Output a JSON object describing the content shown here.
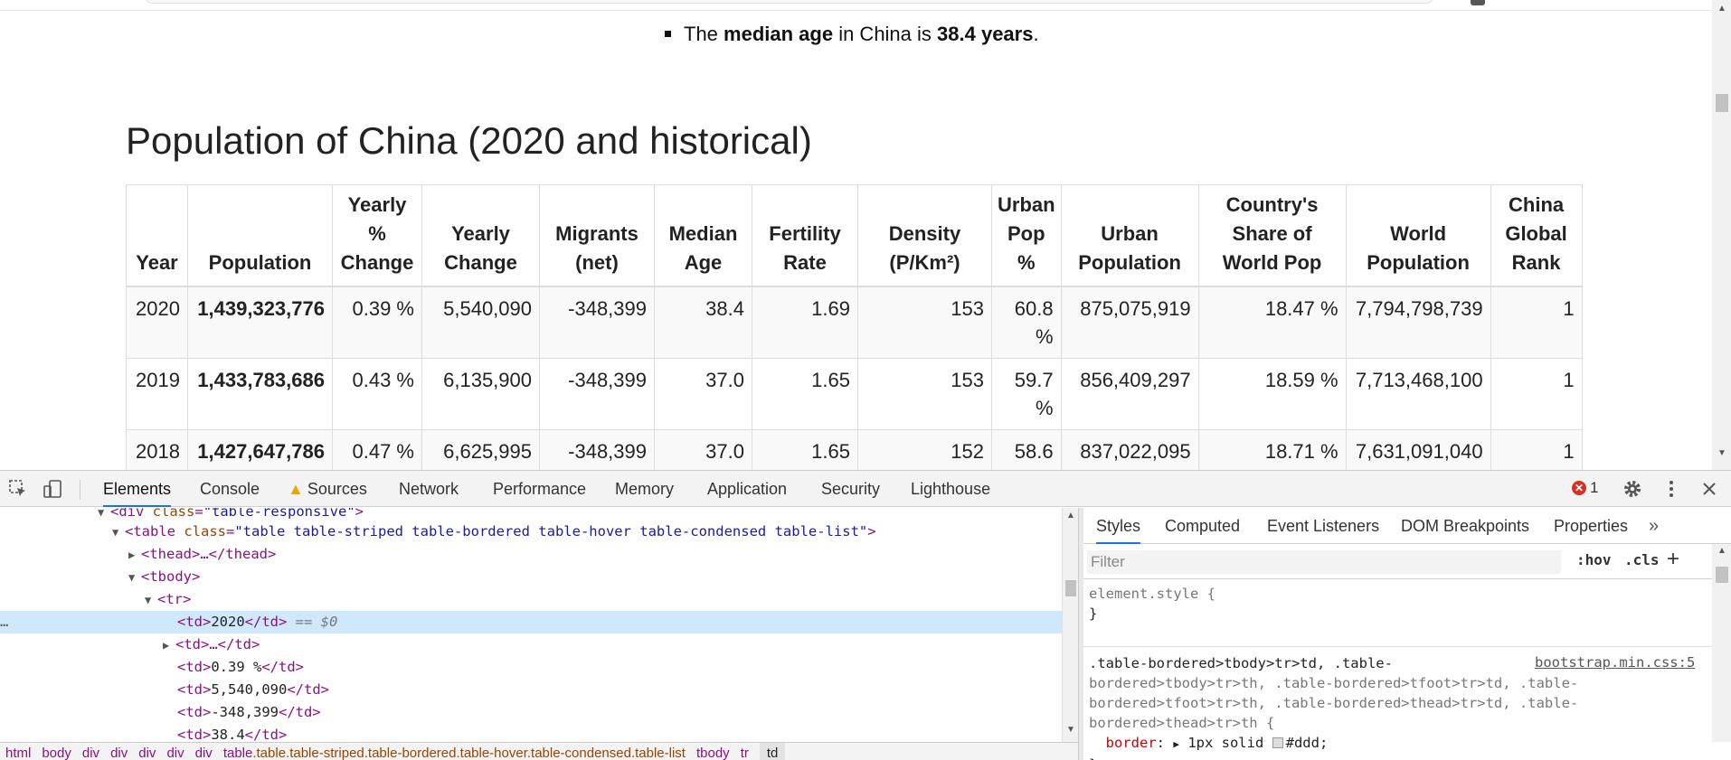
{
  "page": {
    "bullet": {
      "pre": "The ",
      "bold1": "median age",
      "mid": " in China is ",
      "bold2": "38.4 years",
      "post": "."
    },
    "title": "Population of China (2020 and historical)",
    "table": {
      "headers": [
        [
          "Year"
        ],
        [
          "Population"
        ],
        [
          "Yearly",
          "%",
          "Change"
        ],
        [
          "Yearly",
          "Change"
        ],
        [
          "Migrants",
          "(net)"
        ],
        [
          "Median",
          "Age"
        ],
        [
          "Fertility",
          "Rate"
        ],
        [
          "Density",
          "(P/Km²)"
        ],
        [
          "Urban",
          "Pop",
          "%"
        ],
        [
          "Urban",
          "Population"
        ],
        [
          "Country's",
          "Share of",
          "World Pop"
        ],
        [
          "World",
          "Population"
        ],
        [
          "China",
          "Global",
          "Rank"
        ]
      ],
      "rows": [
        [
          "2020",
          "1,439,323,776",
          "0.39 %",
          "5,540,090",
          "-348,399",
          "38.4",
          "1.69",
          "153",
          "60.8 %",
          "875,075,919",
          "18.47 %",
          "7,794,798,739",
          "1"
        ],
        [
          "2019",
          "1,433,783,686",
          "0.43 %",
          "6,135,900",
          "-348,399",
          "37.0",
          "1.65",
          "153",
          "59.7 %",
          "856,409,297",
          "18.59 %",
          "7,713,468,100",
          "1"
        ],
        [
          "2018",
          "1,427,647,786",
          "0.47 %",
          "6,625,995",
          "-348,399",
          "37.0",
          "1.65",
          "152",
          "58.6",
          "837,022,095",
          "18.71 %",
          "7,631,091,040",
          "1"
        ]
      ]
    }
  },
  "devtools": {
    "tabs": [
      "Elements",
      "Console",
      "Sources",
      "Network",
      "Performance",
      "Memory",
      "Application",
      "Security",
      "Lighthouse"
    ],
    "active_tab": "Elements",
    "error_count": "1",
    "dom": {
      "line0": {
        "tag_open": "<div ",
        "attr": "class",
        "val": "\"table-responsive\"",
        "close": ">"
      },
      "line1": {
        "tag_open": "<table ",
        "attr": "class",
        "val": "\"table table-striped table-bordered table-hover table-condensed table-list\"",
        "close": ">"
      },
      "line2": "<thead>…</thead>",
      "line3": "<tbody>",
      "line4": "<tr>",
      "line5": {
        "open": "<td>",
        "text": "2020",
        "close": "</td>",
        "marker": " == $0"
      },
      "line6": "<td>…</td>",
      "line7": {
        "open": "<td>",
        "text": "0.39 %",
        "close": "</td>"
      },
      "line8": {
        "open": "<td>",
        "text": "5,540,090",
        "close": "</td>"
      },
      "line9": {
        "open": "<td>",
        "text": "-348,399",
        "close": "</td>"
      },
      "line10": {
        "open": "<td>",
        "text": "38.4",
        "close": "</td>"
      },
      "dots": "…"
    },
    "styles": {
      "tabs": [
        "Styles",
        "Computed",
        "Event Listeners",
        "DOM Breakpoints",
        "Properties"
      ],
      "more": "»",
      "filter_placeholder": "Filter",
      "hov": ":hov",
      "cls": ".cls",
      "plus": "+",
      "element_style_open": "element.style {",
      "element_style_close": "}",
      "rule_selector_l1": ".table-bordered>tbody>tr>td, .table-",
      "rule_selector_l2": "bordered>tbody>tr>th, .table-bordered>tfoot>tr>td, .table-",
      "rule_selector_l3": "bordered>tfoot>tr>th, .table-bordered>thead>tr>td, .table-",
      "rule_selector_l4": "bordered>thead>tr>th {",
      "rule_source": "bootstrap.min.css:5",
      "prop_name": "border",
      "prop_value_a": "1px solid ",
      "prop_value_b": "#ddd;",
      "rule_close": "}"
    },
    "breadcrumbs": [
      {
        "tag": "html",
        "cls": ""
      },
      {
        "tag": "body",
        "cls": ""
      },
      {
        "tag": "div",
        "cls": ""
      },
      {
        "tag": "div",
        "cls": ""
      },
      {
        "tag": "div",
        "cls": ""
      },
      {
        "tag": "div",
        "cls": ""
      },
      {
        "tag": "div",
        "cls": ""
      },
      {
        "tag": "table",
        "cls": ".table.table-striped.table-bordered.table-hover.table-condensed.table-list"
      },
      {
        "tag": "tbody",
        "cls": ""
      },
      {
        "tag": "tr",
        "cls": ""
      },
      {
        "tag": "td",
        "cls": ""
      }
    ]
  },
  "colors": {
    "accent": "#1a73e8",
    "tag": "#881280",
    "attr_name": "#994500",
    "attr_value": "#1a1aa6",
    "selected_row": "#cfe8fc",
    "error": "#d93025",
    "warning": "#e8a600"
  }
}
